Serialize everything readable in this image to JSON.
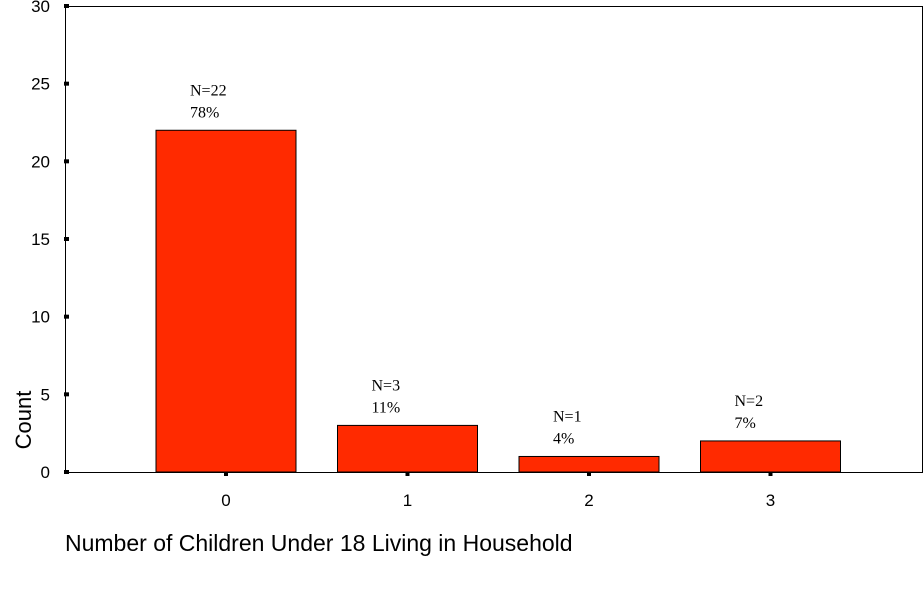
{
  "chart_data": {
    "type": "bar",
    "title": "",
    "xlabel": "Number of Children Under 18 Living in Household",
    "ylabel": "Count",
    "categories": [
      "0",
      "1",
      "2",
      "3"
    ],
    "values": [
      22,
      3,
      1,
      2
    ],
    "data_labels": [
      {
        "count": "N=22",
        "percent": "78%"
      },
      {
        "count": "N=3",
        "percent": "11%"
      },
      {
        "count": "N=1",
        "percent": "4%"
      },
      {
        "count": "N=2",
        "percent": "7%"
      }
    ],
    "ylim": [
      0,
      30
    ],
    "yticks": [
      "0",
      "5",
      "10",
      "15",
      "20",
      "25",
      "30"
    ],
    "grid": false,
    "legend": "none",
    "bar_color": "#ff2a00",
    "bar_edge_color": "#000000"
  }
}
